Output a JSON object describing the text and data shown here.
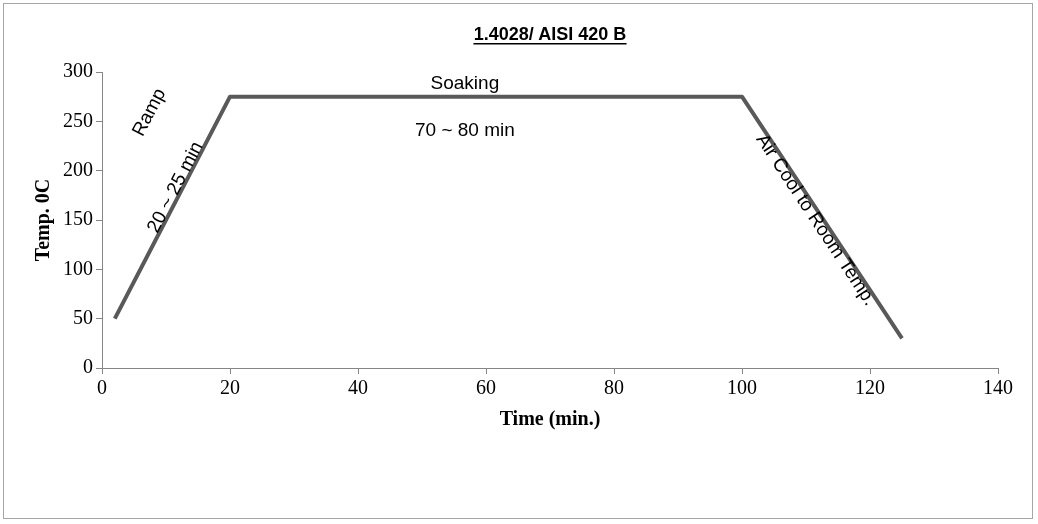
{
  "chart_data": {
    "type": "line",
    "title": "1.4028/ AISI 420 B",
    "xlabel": "Time (min.)",
    "ylabel": "Temp. 0C",
    "x": [
      2,
      20,
      100,
      125
    ],
    "series": [
      {
        "color": "#595959",
        "values": [
          50,
          275,
          275,
          30
        ]
      }
    ],
    "xlim": [
      0,
      140
    ],
    "xticks": [
      0,
      20,
      40,
      60,
      80,
      100,
      120,
      140
    ],
    "ylim": [
      0,
      300
    ],
    "yticks": [
      0,
      50,
      100,
      150,
      200,
      250,
      300
    ],
    "grid": false,
    "legend": false,
    "marker": "none",
    "line_style": "solid",
    "annotations": [
      "Ramp",
      {
        "text": "20 ~ 25 min",
        "x": 11.5,
        "y": 183
      },
      "Soaking",
      "70 ~ 80 min",
      {
        "text": "Air Cool to Room Temp.",
        "x": 111.5,
        "y": 150
      }
    ]
  }
}
